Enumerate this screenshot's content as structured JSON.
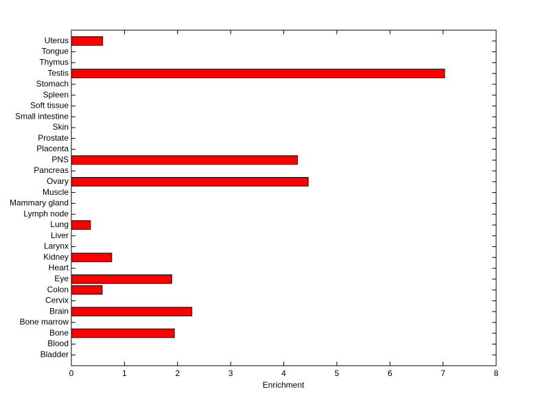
{
  "chart_data": {
    "type": "barh",
    "xlabel": "Enrichment",
    "categories": [
      "Bladder",
      "Blood",
      "Bone",
      "Bone marrow",
      "Brain",
      "Cervix",
      "Colon",
      "Eye",
      "Heart",
      "Kidney",
      "Larynx",
      "Liver",
      "Lung",
      "Lymph node",
      "Mammary gland",
      "Muscle",
      "Ovary",
      "Pancreas",
      "PNS",
      "Placenta",
      "Prostate",
      "Skin",
      "Small intestine",
      "Soft tissue",
      "Spleen",
      "Stomach",
      "Testis",
      "Thymus",
      "Tongue",
      "Uterus"
    ],
    "values": [
      0,
      0,
      1.94,
      0,
      2.27,
      0,
      0.58,
      1.89,
      0,
      0.76,
      0,
      0,
      0.36,
      0,
      0,
      0,
      4.46,
      0,
      4.26,
      0,
      0,
      0,
      0,
      0,
      0,
      0,
      7.03,
      0,
      0,
      0.59
    ],
    "color": "#ff0000",
    "xlim": [
      0,
      8
    ],
    "xticks": [
      0,
      1,
      2,
      3,
      4,
      5,
      6,
      7,
      8
    ],
    "grid": false
  }
}
